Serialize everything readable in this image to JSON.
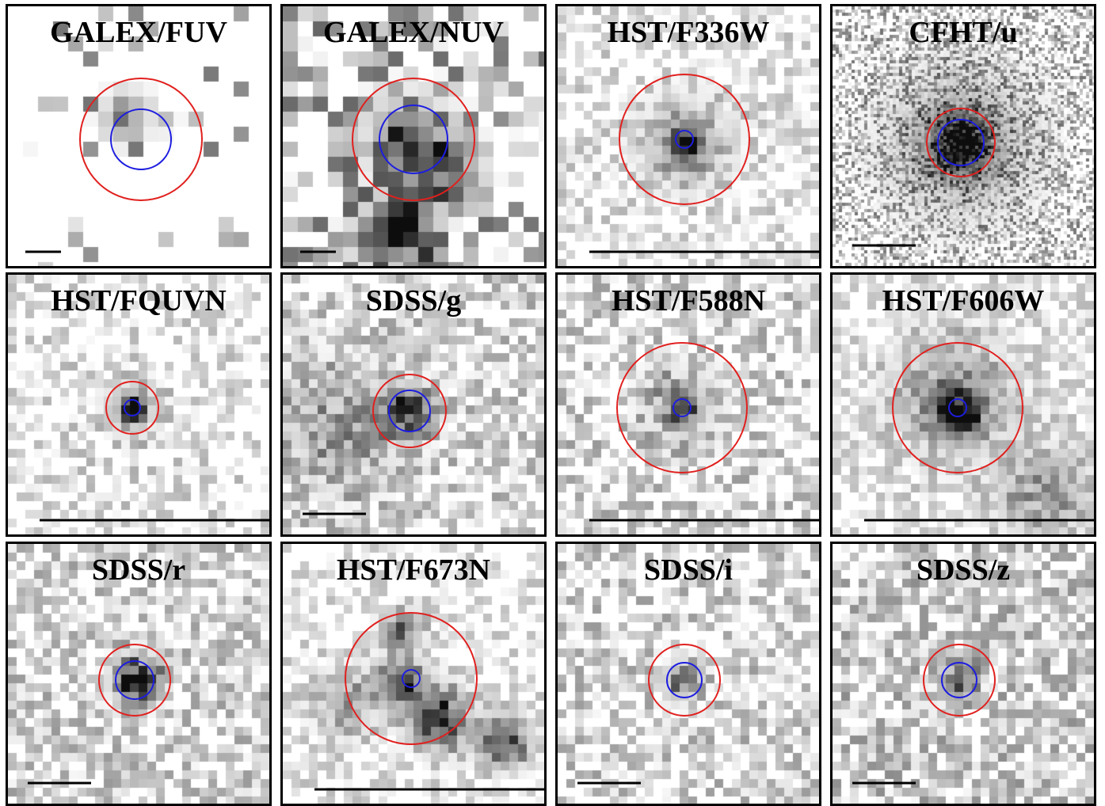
{
  "panels": [
    {
      "label": "GALEX/FUV",
      "outer_ring_color": "#e0201e",
      "inner_ring_color": "#1d1de0"
    },
    {
      "label": "GALEX/NUV",
      "outer_ring_color": "#e0201e",
      "inner_ring_color": "#1d1de0"
    },
    {
      "label": "HST/F336W",
      "outer_ring_color": "#e0201e",
      "inner_ring_color": "#1d1de0"
    },
    {
      "label": "CFHT/u",
      "outer_ring_color": "#e0201e",
      "inner_ring_color": "#1d1de0"
    },
    {
      "label": "HST/FQUVN",
      "outer_ring_color": "#e0201e",
      "inner_ring_color": "#1d1de0"
    },
    {
      "label": "SDSS/g",
      "outer_ring_color": "#e0201e",
      "inner_ring_color": "#1d1de0"
    },
    {
      "label": "HST/F588N",
      "outer_ring_color": "#e0201e",
      "inner_ring_color": "#1d1de0"
    },
    {
      "label": "HST/F606W",
      "outer_ring_color": "#e0201e",
      "inner_ring_color": "#1d1de0"
    },
    {
      "label": "SDSS/r",
      "outer_ring_color": "#e0201e",
      "inner_ring_color": "#1d1de0"
    },
    {
      "label": "HST/F673N",
      "outer_ring_color": "#e0201e",
      "inner_ring_color": "#1d1de0"
    },
    {
      "label": "SDSS/i",
      "outer_ring_color": "#e0201e",
      "inner_ring_color": "#1d1de0"
    },
    {
      "label": "SDSS/z",
      "outer_ring_color": "#e0201e",
      "inner_ring_color": "#1d1de0"
    }
  ]
}
